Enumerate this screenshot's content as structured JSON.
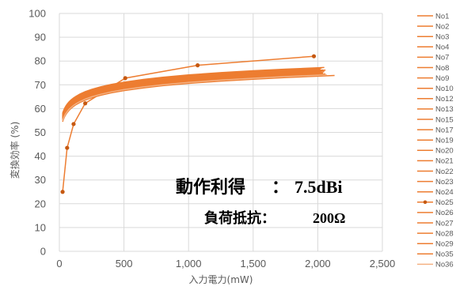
{
  "chart_data": {
    "type": "line",
    "xlabel": "入力電力(mW)",
    "ylabel": "変換効率 (%)",
    "xlim": [
      0,
      2500
    ],
    "ylim": [
      0,
      100
    ],
    "xticks": [
      0,
      500,
      1000,
      1500,
      2000,
      2500
    ],
    "xtick_labels": [
      "0",
      "500",
      "1,000",
      "1,500",
      "2,000",
      "2,500"
    ],
    "yticks": [
      0,
      10,
      20,
      30,
      40,
      50,
      60,
      70,
      80,
      90,
      100
    ],
    "grid": true,
    "legend_position": "right",
    "annotations": [
      {
        "label": "動作利得",
        "sep": "：",
        "value": "7.5dBi"
      },
      {
        "label": "負荷抵抗：",
        "value": "200Ω"
      }
    ],
    "series": [
      {
        "name": "No1",
        "color": "#ed7d31",
        "marker": false,
        "xmax": 2050,
        "a": 74.14,
        "b": 4.37
      },
      {
        "name": "No2",
        "color": "#ed7d31",
        "marker": false,
        "xmax": 2030,
        "a": 72.46,
        "b": 4.37
      },
      {
        "name": "No3",
        "color": "#ed7d31",
        "marker": false,
        "xmax": 2020,
        "a": 73.27,
        "b": 4.37
      },
      {
        "name": "No4",
        "color": "#ed7d31",
        "marker": false,
        "xmax": 2010,
        "a": 71.65,
        "b": 4.37
      },
      {
        "name": "No7",
        "color": "#ed7d31",
        "marker": false,
        "xmax": 2000,
        "a": 72.89,
        "b": 4.37
      },
      {
        "name": "No8",
        "color": "#ed7d31",
        "marker": false,
        "xmax": 1990,
        "a": 73.65,
        "b": 4.37
      },
      {
        "name": "No9",
        "color": "#ed7d31",
        "marker": false,
        "xmax": 2040,
        "a": 72.06,
        "b": 4.37
      },
      {
        "name": "No10",
        "color": "#ed7d31",
        "marker": false,
        "xmax": 2060,
        "a": 71.4,
        "b": 4.37
      },
      {
        "name": "No12",
        "color": "#ed7d31",
        "marker": false,
        "xmax": 2030,
        "a": 73.9,
        "b": 4.37
      },
      {
        "name": "No13",
        "color": "#ed7d31",
        "marker": false,
        "xmax": 2010,
        "a": 72.7,
        "b": 4.37
      },
      {
        "name": "No15",
        "color": "#ed7d31",
        "marker": false,
        "xmax": 1980,
        "a": 73.4,
        "b": 4.37
      },
      {
        "name": "No17",
        "color": "#ed7d31",
        "marker": false,
        "xmax": 2020,
        "a": 71.9,
        "b": 4.37
      },
      {
        "name": "No19",
        "color": "#ed7d31",
        "marker": false,
        "xmax": 2050,
        "a": 72.3,
        "b": 4.37
      },
      {
        "name": "No20",
        "color": "#ed7d31",
        "marker": false,
        "xmax": 2040,
        "a": 73.1,
        "b": 4.37
      },
      {
        "name": "No21",
        "color": "#ed7d31",
        "marker": false,
        "xmax": 2000,
        "a": 72.6,
        "b": 4.37
      },
      {
        "name": "No22",
        "color": "#ed7d31",
        "marker": false,
        "xmax": 2030,
        "a": 71.2,
        "b": 4.37
      },
      {
        "name": "No23",
        "color": "#ed7d31",
        "marker": false,
        "xmax": 2010,
        "a": 72.5,
        "b": 4.37
      },
      {
        "name": "No24",
        "color": "#ed7d31",
        "marker": false,
        "xmax": 2020,
        "a": 73.5,
        "b": 4.37
      },
      {
        "name": "No25",
        "color": "#ed7d31",
        "marker": true,
        "points": [
          [
            25,
            25
          ],
          [
            60,
            43.5
          ],
          [
            110,
            53.5
          ],
          [
            200,
            62.2
          ],
          [
            510,
            72.8
          ],
          [
            1070,
            78.2
          ],
          [
            1970,
            82
          ]
        ]
      },
      {
        "name": "No26",
        "color": "#ed7d31",
        "marker": false,
        "xmax": 2130,
        "a": 70.6,
        "b": 4.37
      },
      {
        "name": "No27",
        "color": "#ed7d31",
        "marker": false,
        "xmax": 2050,
        "a": 72.8,
        "b": 4.37
      },
      {
        "name": "No28",
        "color": "#ed7d31",
        "marker": false,
        "xmax": 2040,
        "a": 71.8,
        "b": 4.37
      },
      {
        "name": "No29",
        "color": "#ed7d31",
        "marker": false,
        "xmax": 2060,
        "a": 73.0,
        "b": 4.37
      },
      {
        "name": "No35",
        "color": "#ed7d31",
        "marker": false,
        "xmax": 2020,
        "a": 72.2,
        "b": 4.37
      },
      {
        "name": "No36",
        "color": "#f4b183",
        "marker": false,
        "xmax": 2070,
        "a": 71.0,
        "b": 4.37
      }
    ]
  }
}
